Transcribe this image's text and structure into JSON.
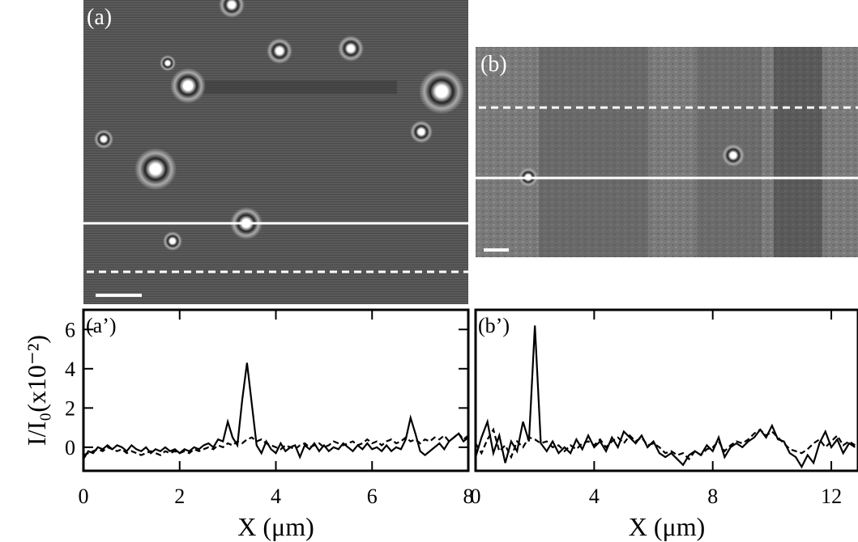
{
  "images": [
    {
      "label": "(a)"
    },
    {
      "label": "(b)"
    }
  ],
  "chart_data": [
    {
      "type": "line",
      "label": "(a’)",
      "ylabel": "I/I₀(x10⁻²)",
      "xlabel": "X (μm)",
      "x": [
        0,
        0.1,
        0.2,
        0.3,
        0.4,
        0.5,
        0.6,
        0.7,
        0.8,
        0.9,
        1,
        1.1,
        1.2,
        1.3,
        1.4,
        1.5,
        1.6,
        1.7,
        1.8,
        1.9,
        2,
        2.1,
        2.2,
        2.3,
        2.4,
        2.5,
        2.6,
        2.7,
        2.8,
        2.9,
        3,
        3.1,
        3.2,
        3.3,
        3.4,
        3.5,
        3.6,
        3.7,
        3.8,
        3.9,
        4,
        4.1,
        4.2,
        4.3,
        4.4,
        4.5,
        4.6,
        4.7,
        4.8,
        4.9,
        5,
        5.1,
        5.2,
        5.3,
        5.4,
        5.5,
        5.6,
        5.7,
        5.8,
        5.9,
        6,
        6.1,
        6.2,
        6.3,
        6.4,
        6.5,
        6.6,
        6.7,
        6.8,
        6.9,
        7,
        7.1,
        7.2,
        7.3,
        7.4,
        7.5,
        7.6,
        7.7,
        7.8,
        7.9,
        8
      ],
      "series": [
        {
          "color": "#000000",
          "style": "solid",
          "values": [
            -0.6,
            -0.2,
            -0.3,
            0,
            -0.1,
            0.1,
            -0.1,
            0.1,
            0,
            -0.2,
            0.1,
            -0.1,
            -0.2,
            0,
            -0.3,
            -0.1,
            -0.2,
            0,
            -0.2,
            -0.1,
            -0.3,
            -0.1,
            -0.2,
            0,
            -0.1,
            0.1,
            0.2,
            0,
            0.4,
            0.3,
            1.3,
            0.5,
            0.1,
            2.4,
            4.3,
            2.2,
            0.1,
            -0.3,
            0.3,
            -0.1,
            -0.3,
            0.2,
            -0.2,
            0,
            0.1,
            -0.5,
            0.1,
            -0.1,
            0.2,
            -0.2,
            0.1,
            -0.2,
            0,
            -0.1,
            0.2,
            0,
            -0.2,
            0.1,
            -0.1,
            0.2,
            -0.1,
            0,
            -0.2,
            0.1,
            -0.2,
            0,
            -0.1,
            0.4,
            1.5,
            0.7,
            -0.2,
            -0.4,
            -0.2,
            0,
            0.2,
            -0.1,
            0.3,
            0.5,
            0.7,
            0.3,
            0.5
          ]
        },
        {
          "color": "#000000",
          "style": "dashed",
          "values": [
            -0.4,
            -0.3,
            -0.2,
            -0.1,
            -0.2,
            0,
            -0.1,
            -0.2,
            -0.1,
            -0.3,
            -0.2,
            -0.3,
            -0.4,
            -0.3,
            -0.2,
            -0.3,
            -0.4,
            -0.2,
            -0.3,
            -0.2,
            -0.3,
            -0.2,
            -0.3,
            -0.1,
            -0.2,
            -0.1,
            0,
            -0.1,
            0.1,
            0,
            0.2,
            0.1,
            0.3,
            0.2,
            0.4,
            0.5,
            0.3,
            0.4,
            0.2,
            0.1,
            0,
            -0.1,
            0.1,
            0,
            -0.1,
            0.1,
            0.2,
            0,
            0.1,
            0.2,
            0,
            0.1,
            0.3,
            0.2,
            0.1,
            0.2,
            0.3,
            0.1,
            0.2,
            0.4,
            0.2,
            0.3,
            0.1,
            0.3,
            0.4,
            0.2,
            0.3,
            0.5,
            0.3,
            0.4,
            0.2,
            0.4,
            0.3,
            0.5,
            0.4,
            0.6,
            0.3,
            0.5,
            0.7,
            0.4,
            0.6
          ]
        }
      ],
      "xlim": [
        0,
        8
      ],
      "xticks": [
        0,
        2,
        4,
        6,
        8
      ],
      "ylim": [
        -1.2,
        7
      ],
      "yticks": [
        0,
        2,
        4,
        6
      ]
    },
    {
      "type": "line",
      "label": "(b’)",
      "xlabel": "X (μm)",
      "x": [
        0,
        0.2,
        0.4,
        0.6,
        0.8,
        1,
        1.2,
        1.4,
        1.6,
        1.8,
        2,
        2.2,
        2.4,
        2.6,
        2.8,
        3,
        3.2,
        3.4,
        3.6,
        3.8,
        4,
        4.2,
        4.4,
        4.6,
        4.8,
        5,
        5.2,
        5.4,
        5.6,
        5.8,
        6,
        6.2,
        6.4,
        6.6,
        6.8,
        7,
        7.2,
        7.4,
        7.6,
        7.8,
        8,
        8.2,
        8.4,
        8.6,
        8.8,
        9,
        9.2,
        9.4,
        9.6,
        9.8,
        10,
        10.2,
        10.4,
        10.6,
        10.8,
        11,
        11.2,
        11.4,
        11.6,
        11.8,
        12,
        12.2,
        12.4,
        12.6,
        12.8
      ],
      "series": [
        {
          "color": "#000000",
          "style": "solid",
          "values": [
            -0.5,
            0.5,
            1.3,
            -0.3,
            0.6,
            -0.8,
            0.3,
            -0.2,
            1.3,
            0.3,
            6.2,
            0.2,
            -0.2,
            0.3,
            -0.3,
            0,
            -0.3,
            0.4,
            -0.1,
            0.6,
            0,
            0.3,
            -0.2,
            0.5,
            0,
            0.8,
            0.5,
            0.2,
            0.6,
            0,
            0.3,
            -0.3,
            -0.5,
            -0.3,
            -0.6,
            -0.9,
            -0.4,
            -0.2,
            -0.4,
            0.1,
            -0.2,
            0.5,
            -0.5,
            0,
            0.2,
            0,
            0.3,
            0.5,
            0.9,
            0.5,
            1.1,
            0.4,
            0.3,
            -0.3,
            -0.5,
            -1,
            -0.4,
            -0.8,
            0.2,
            0.8,
            0,
            0.4,
            -0.3,
            0.2,
            0
          ]
        },
        {
          "color": "#000000",
          "style": "dashed",
          "values": [
            0.2,
            -0.3,
            0.4,
            0.9,
            -0.2,
            0.1,
            -0.5,
            0.3,
            0,
            0.5,
            0.4,
            0.2,
            0.3,
            0,
            0.1,
            -0.2,
            0.1,
            -0.1,
            0.2,
            0.3,
            0.1,
            0.4,
            0,
            0.3,
            0.5,
            0.2,
            0.6,
            0.3,
            0.5,
            0.1,
            0.2,
            0,
            -0.3,
            -0.2,
            -0.4,
            -0.3,
            -0.6,
            -0.2,
            -0.4,
            -0.1,
            0,
            0.3,
            -0.2,
            0.1,
            0.3,
            0.2,
            0.4,
            0.7,
            0.9,
            0.6,
            0.8,
            0.5,
            0.2,
            -0.1,
            -0.2,
            -0.3,
            -0.1,
            0.2,
            0.4,
            0,
            0.3,
            0.6,
            0.1,
            0.3,
            0.1
          ]
        }
      ],
      "xlim": [
        0,
        12.9
      ],
      "xticks": [
        0,
        4,
        8,
        12
      ],
      "ylim": [
        -1.2,
        7
      ]
    }
  ]
}
